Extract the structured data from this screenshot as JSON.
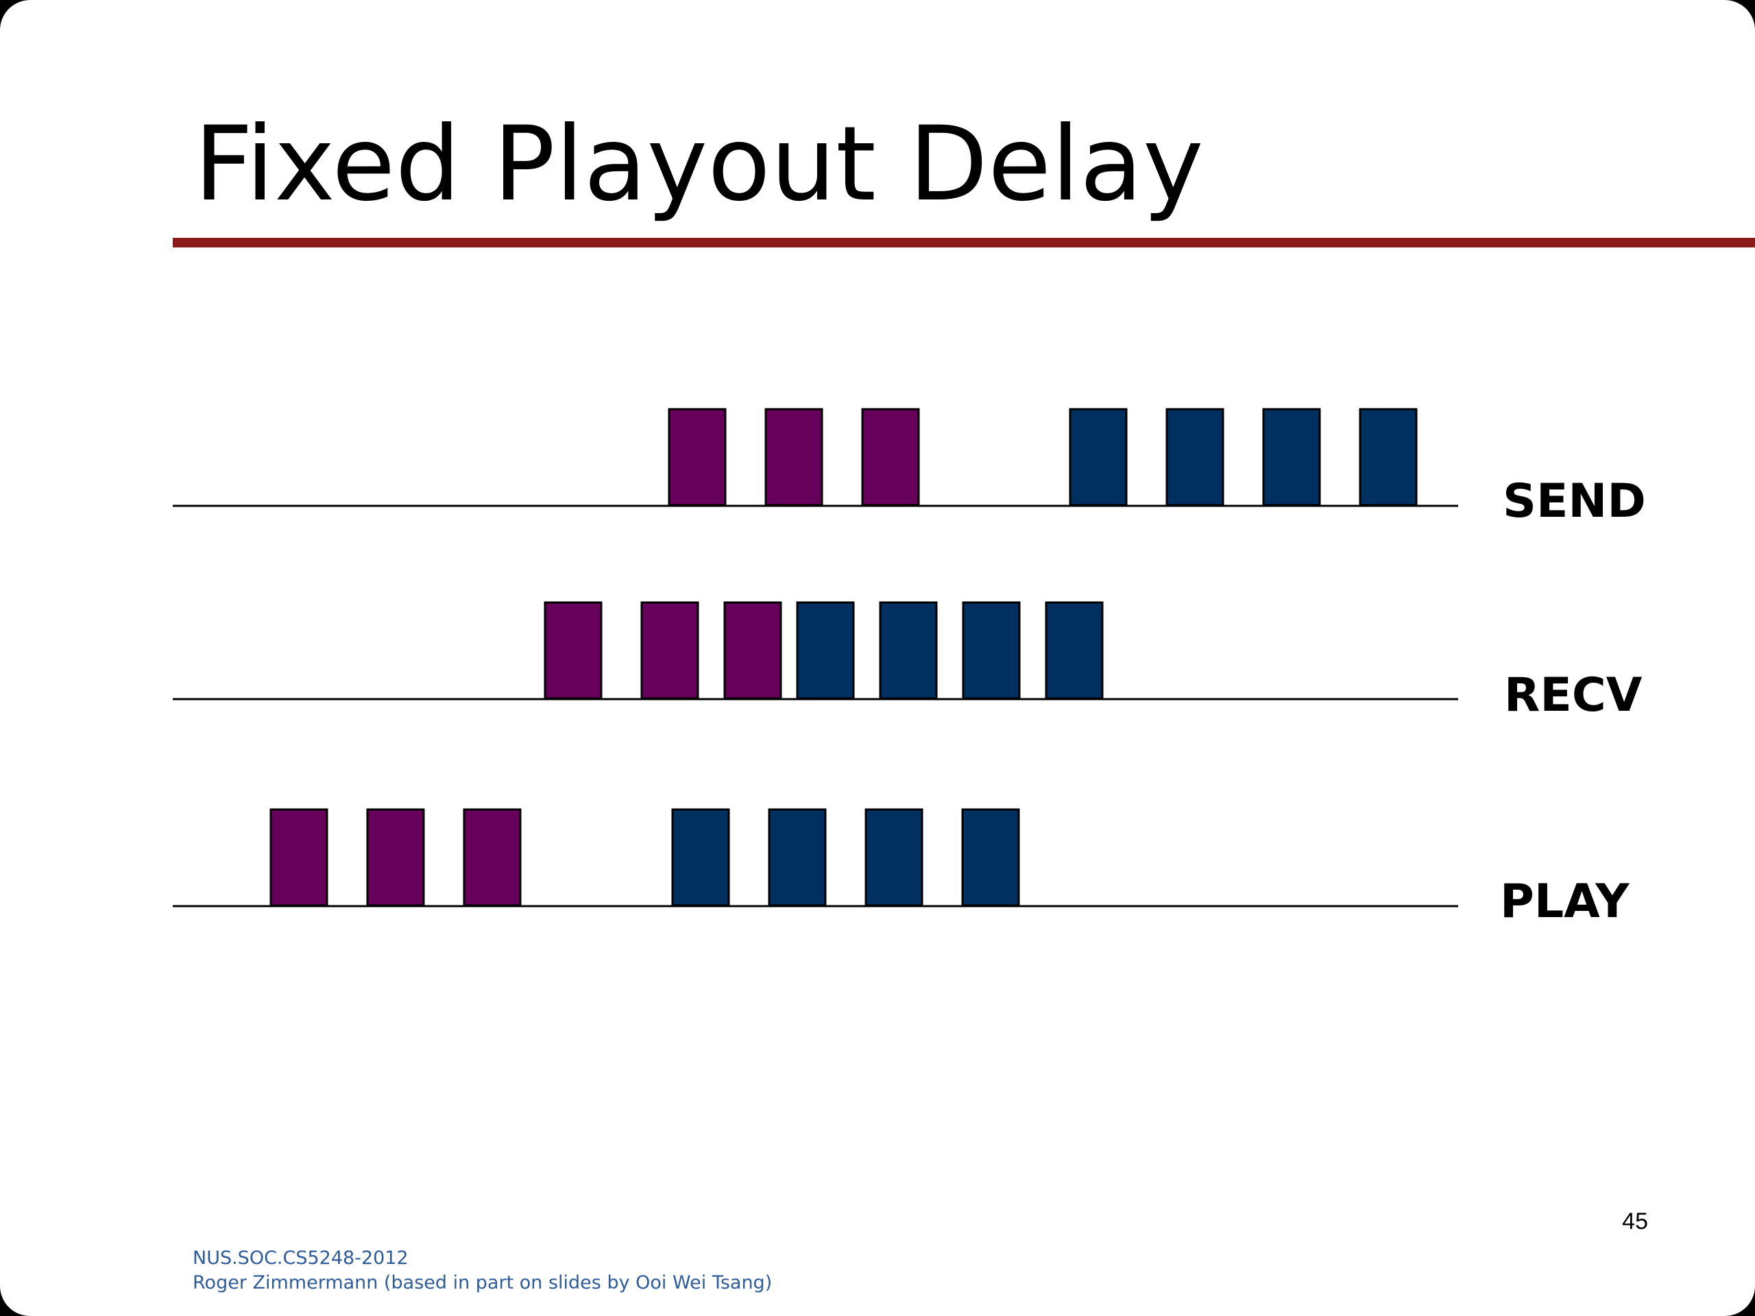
{
  "slide": {
    "title": "Fixed Playout Delay",
    "page_number": "45",
    "footer": {
      "line1": "NUS.SOC.CS5248-2012",
      "line2": "Roger Zimmermann (based in part on slides by Ooi Wei Tsang)"
    }
  },
  "colors": {
    "title_rule": "#8b1a1a",
    "first_talkspurt": "#66005a",
    "second_talkspurt": "#003060",
    "footer_text": "#2e5c9a"
  },
  "rows": [
    {
      "label": "SEND",
      "packets": [
        {
          "talkspurt": 1
        },
        {
          "talkspurt": 1
        },
        {
          "talkspurt": 1
        },
        {
          "talkspurt": 2
        },
        {
          "talkspurt": 2
        },
        {
          "talkspurt": 2
        },
        {
          "talkspurt": 2
        }
      ]
    },
    {
      "label": "RECV",
      "packets": [
        {
          "talkspurt": 1
        },
        {
          "talkspurt": 1
        },
        {
          "talkspurt": 1
        },
        {
          "talkspurt": 2
        },
        {
          "talkspurt": 2
        },
        {
          "talkspurt": 2
        },
        {
          "talkspurt": 2
        }
      ]
    },
    {
      "label": "PLAY",
      "packets": [
        {
          "talkspurt": 1
        },
        {
          "talkspurt": 1
        },
        {
          "talkspurt": 1
        },
        {
          "talkspurt": 2
        },
        {
          "talkspurt": 2
        },
        {
          "talkspurt": 2
        },
        {
          "talkspurt": 2
        }
      ]
    }
  ]
}
